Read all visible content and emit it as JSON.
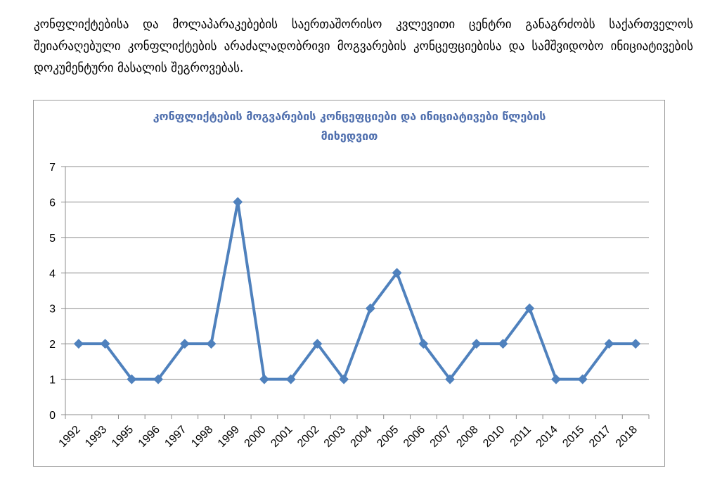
{
  "document": {
    "intro_text": "კონფლიქტებისა და მოლაპარაკებების საერთაშორისო კვლევითი ცენტრი განაგრძობს საქართველოს შეიარაღებული კონფლიქტების არაძალადობრივი მოგვარების კონცეფციებისა და სამშვიდობო ინიციატივების დოკუმენტური მასალის შეგროვებას."
  },
  "chart_data": {
    "type": "line",
    "title_lines": [
      "კონფლიქტების მოგვარების კონცეფციები და ინიციატივები წლების",
      "მიხედვით"
    ],
    "categories": [
      "1992",
      "1993",
      "1995",
      "1996",
      "1997",
      "1998",
      "1999",
      "2000",
      "2001",
      "2002",
      "2003",
      "2004",
      "2005",
      "2006",
      "2007",
      "2008",
      "2010",
      "2011",
      "2014",
      "2015",
      "2017",
      "2018"
    ],
    "series": [
      {
        "values": [
          2,
          2,
          1,
          1,
          2,
          2,
          6,
          1,
          1,
          2,
          1,
          3,
          4,
          2,
          1,
          2,
          2,
          3,
          1,
          1,
          2,
          2
        ],
        "color": "#4f81bd",
        "marker": "diamond"
      }
    ],
    "ylim": [
      0,
      7
    ],
    "y_ticks": [
      0,
      1,
      2,
      3,
      4,
      5,
      6,
      7
    ],
    "grid": true,
    "legend": "none",
    "xlabel": "",
    "ylabel": ""
  }
}
